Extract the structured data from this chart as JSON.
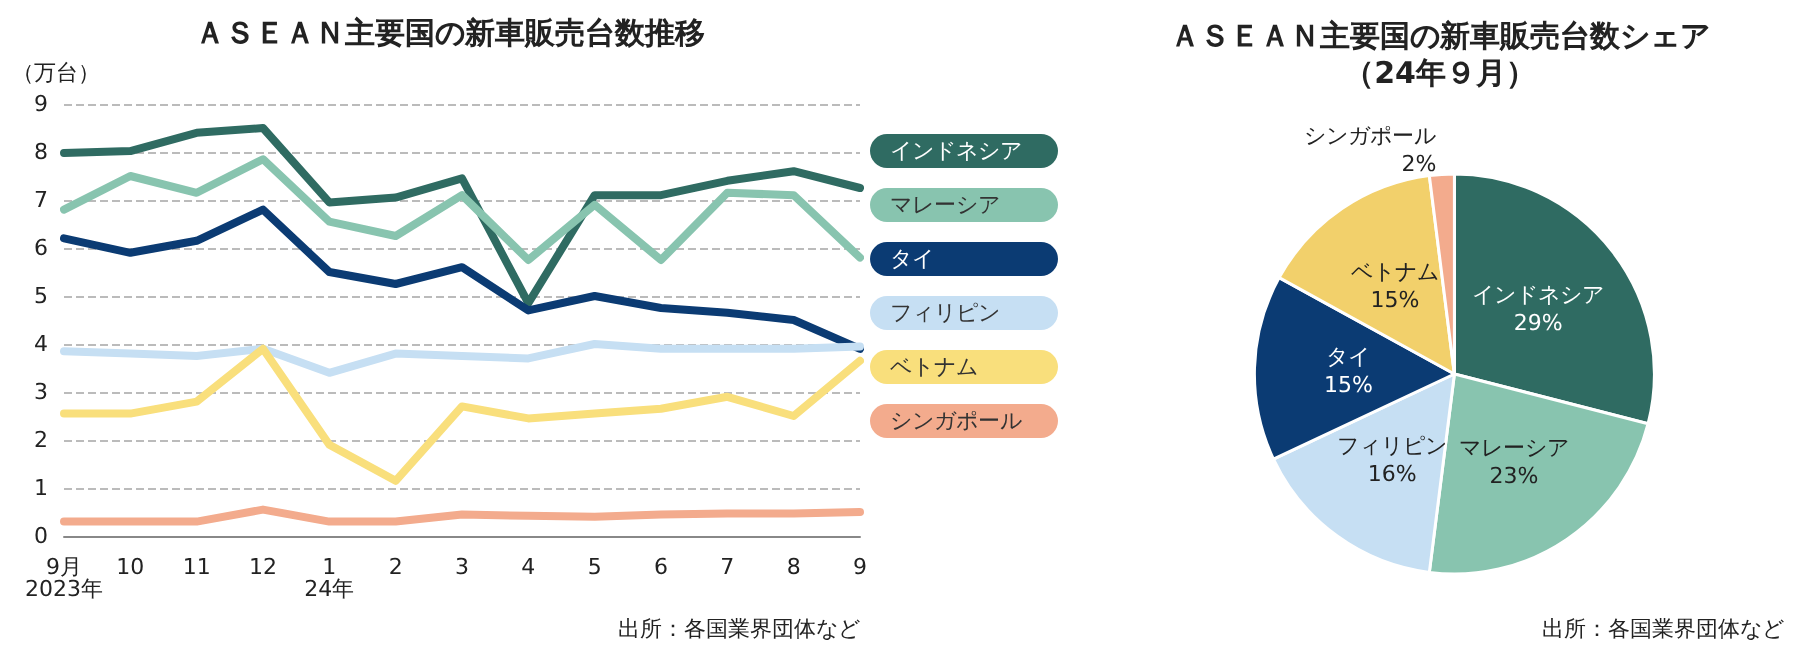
{
  "chart_data": [
    {
      "type": "line",
      "title": "ＡＳＥＡＮ主要国の新車販売台数推移",
      "ylabel": "（万台）",
      "categories": [
        "9月\n2023年",
        "10",
        "11",
        "12",
        "1\n24年",
        "2",
        "3",
        "4",
        "5",
        "6",
        "7",
        "8",
        "9"
      ],
      "series": [
        {
          "name": "インドネシア",
          "color": "#2f6b62",
          "values": [
            7.98,
            8.02,
            8.4,
            8.5,
            6.95,
            7.05,
            7.45,
            4.85,
            7.1,
            7.1,
            7.4,
            7.6,
            7.25
          ]
        },
        {
          "name": "マレーシア",
          "color": "#88c4af",
          "values": [
            6.8,
            7.5,
            7.15,
            7.85,
            6.55,
            6.25,
            7.1,
            5.75,
            6.9,
            5.75,
            7.15,
            7.1,
            5.8
          ]
        },
        {
          "name": "タイ",
          "color": "#0b3b73",
          "values": [
            6.2,
            5.9,
            6.15,
            6.8,
            5.5,
            5.25,
            5.6,
            4.7,
            5.0,
            4.75,
            4.65,
            4.5,
            3.9
          ]
        },
        {
          "name": "フィリピン",
          "color": "#c6dff3",
          "values": [
            3.85,
            3.8,
            3.75,
            3.9,
            3.4,
            3.8,
            3.75,
            3.7,
            4.0,
            3.9,
            3.9,
            3.9,
            3.95
          ]
        },
        {
          "name": "ベトナム",
          "color": "#f9df7c",
          "values": [
            2.55,
            2.55,
            2.8,
            3.9,
            1.9,
            1.15,
            2.7,
            2.45,
            2.55,
            2.65,
            2.9,
            2.5,
            3.65
          ]
        },
        {
          "name": "シンガポール",
          "color": "#f3ab8d",
          "values": [
            0.3,
            0.3,
            0.3,
            0.55,
            0.3,
            0.3,
            0.45,
            0.42,
            0.4,
            0.45,
            0.47,
            0.47,
            0.5
          ]
        }
      ],
      "ylim": [
        0,
        9
      ],
      "yticks": [
        0,
        1,
        2,
        3,
        4,
        5,
        6,
        7,
        8,
        9
      ],
      "grid": "y",
      "legend": "right",
      "marker": "none",
      "line_style": "solid",
      "annotations": [
        "出所：各国業界団体など"
      ]
    },
    {
      "type": "pie",
      "title": "ＡＳＥＡＮ主要国の新車販売台数シェア",
      "subtitle": "（24年９月）",
      "categories": [
        "インドネシア",
        "マレーシア",
        "フィリピン",
        "タイ",
        "ベトナム",
        "シンガポール"
      ],
      "values": [
        29,
        23,
        16,
        15,
        15,
        2
      ],
      "colors": [
        "#2f6b62",
        "#88c4af",
        "#c6dff3",
        "#0b3b73",
        "#f2d06b",
        "#f3ab8d"
      ],
      "value_labels": [
        "29%",
        "23%",
        "16%",
        "15%",
        "15%",
        "2%"
      ],
      "annotations": [
        "出所：各国業界団体など"
      ]
    }
  ]
}
